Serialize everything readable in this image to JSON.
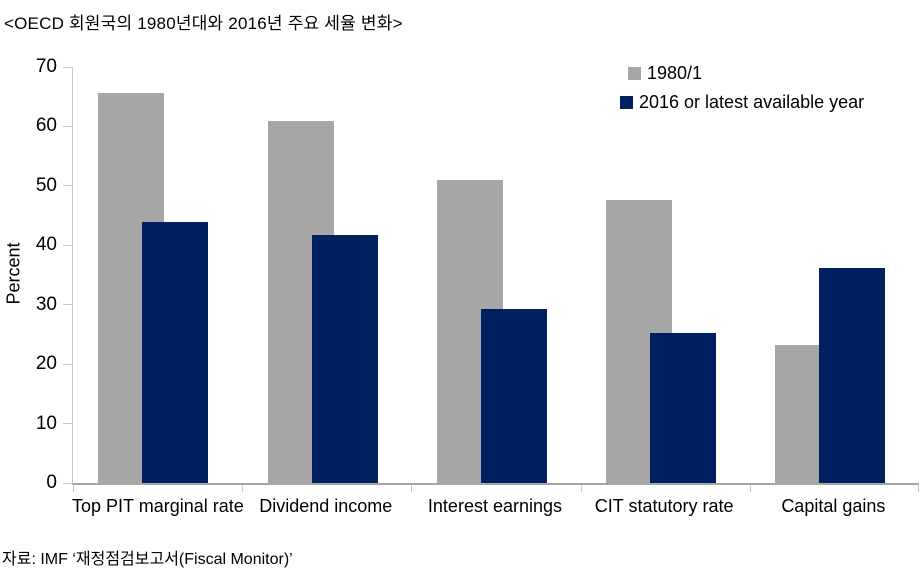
{
  "page": {
    "title": "<OECD 회원국의 1980년대와 2016년 주요 세율 변화>",
    "source": "자료: IMF ‘재정점검보고서(Fiscal Monitor)’"
  },
  "chart_data": {
    "type": "bar",
    "title": "<OECD 회원국의 1980년대와 2016년 주요 세율 변화>",
    "categories": [
      "Top PIT marginal rate",
      "Dividend income",
      "Interest earnings",
      "CIT statutory rate",
      "Capital gains"
    ],
    "series": [
      {
        "name": "1980/1",
        "color": "#a6a6a6",
        "values": [
          65.7,
          61.0,
          51.0,
          47.6,
          23.2
        ]
      },
      {
        "name": "2016 or latest available year",
        "color": "#002060",
        "values": [
          43.9,
          41.8,
          29.3,
          25.2,
          36.2
        ]
      }
    ],
    "xlabel": "",
    "ylabel": "Percent",
    "ylim": [
      0,
      70
    ],
    "yticks": [
      0,
      10,
      20,
      30,
      40,
      50,
      60,
      70
    ],
    "grid": false,
    "legend_position": "top-right",
    "bar_style": "overlapped",
    "axis_color": "#c9c9c9",
    "baseline_color": "#a6a6a6",
    "source": "자료: IMF ‘재정점검보고서(Fiscal Monitor)’"
  }
}
